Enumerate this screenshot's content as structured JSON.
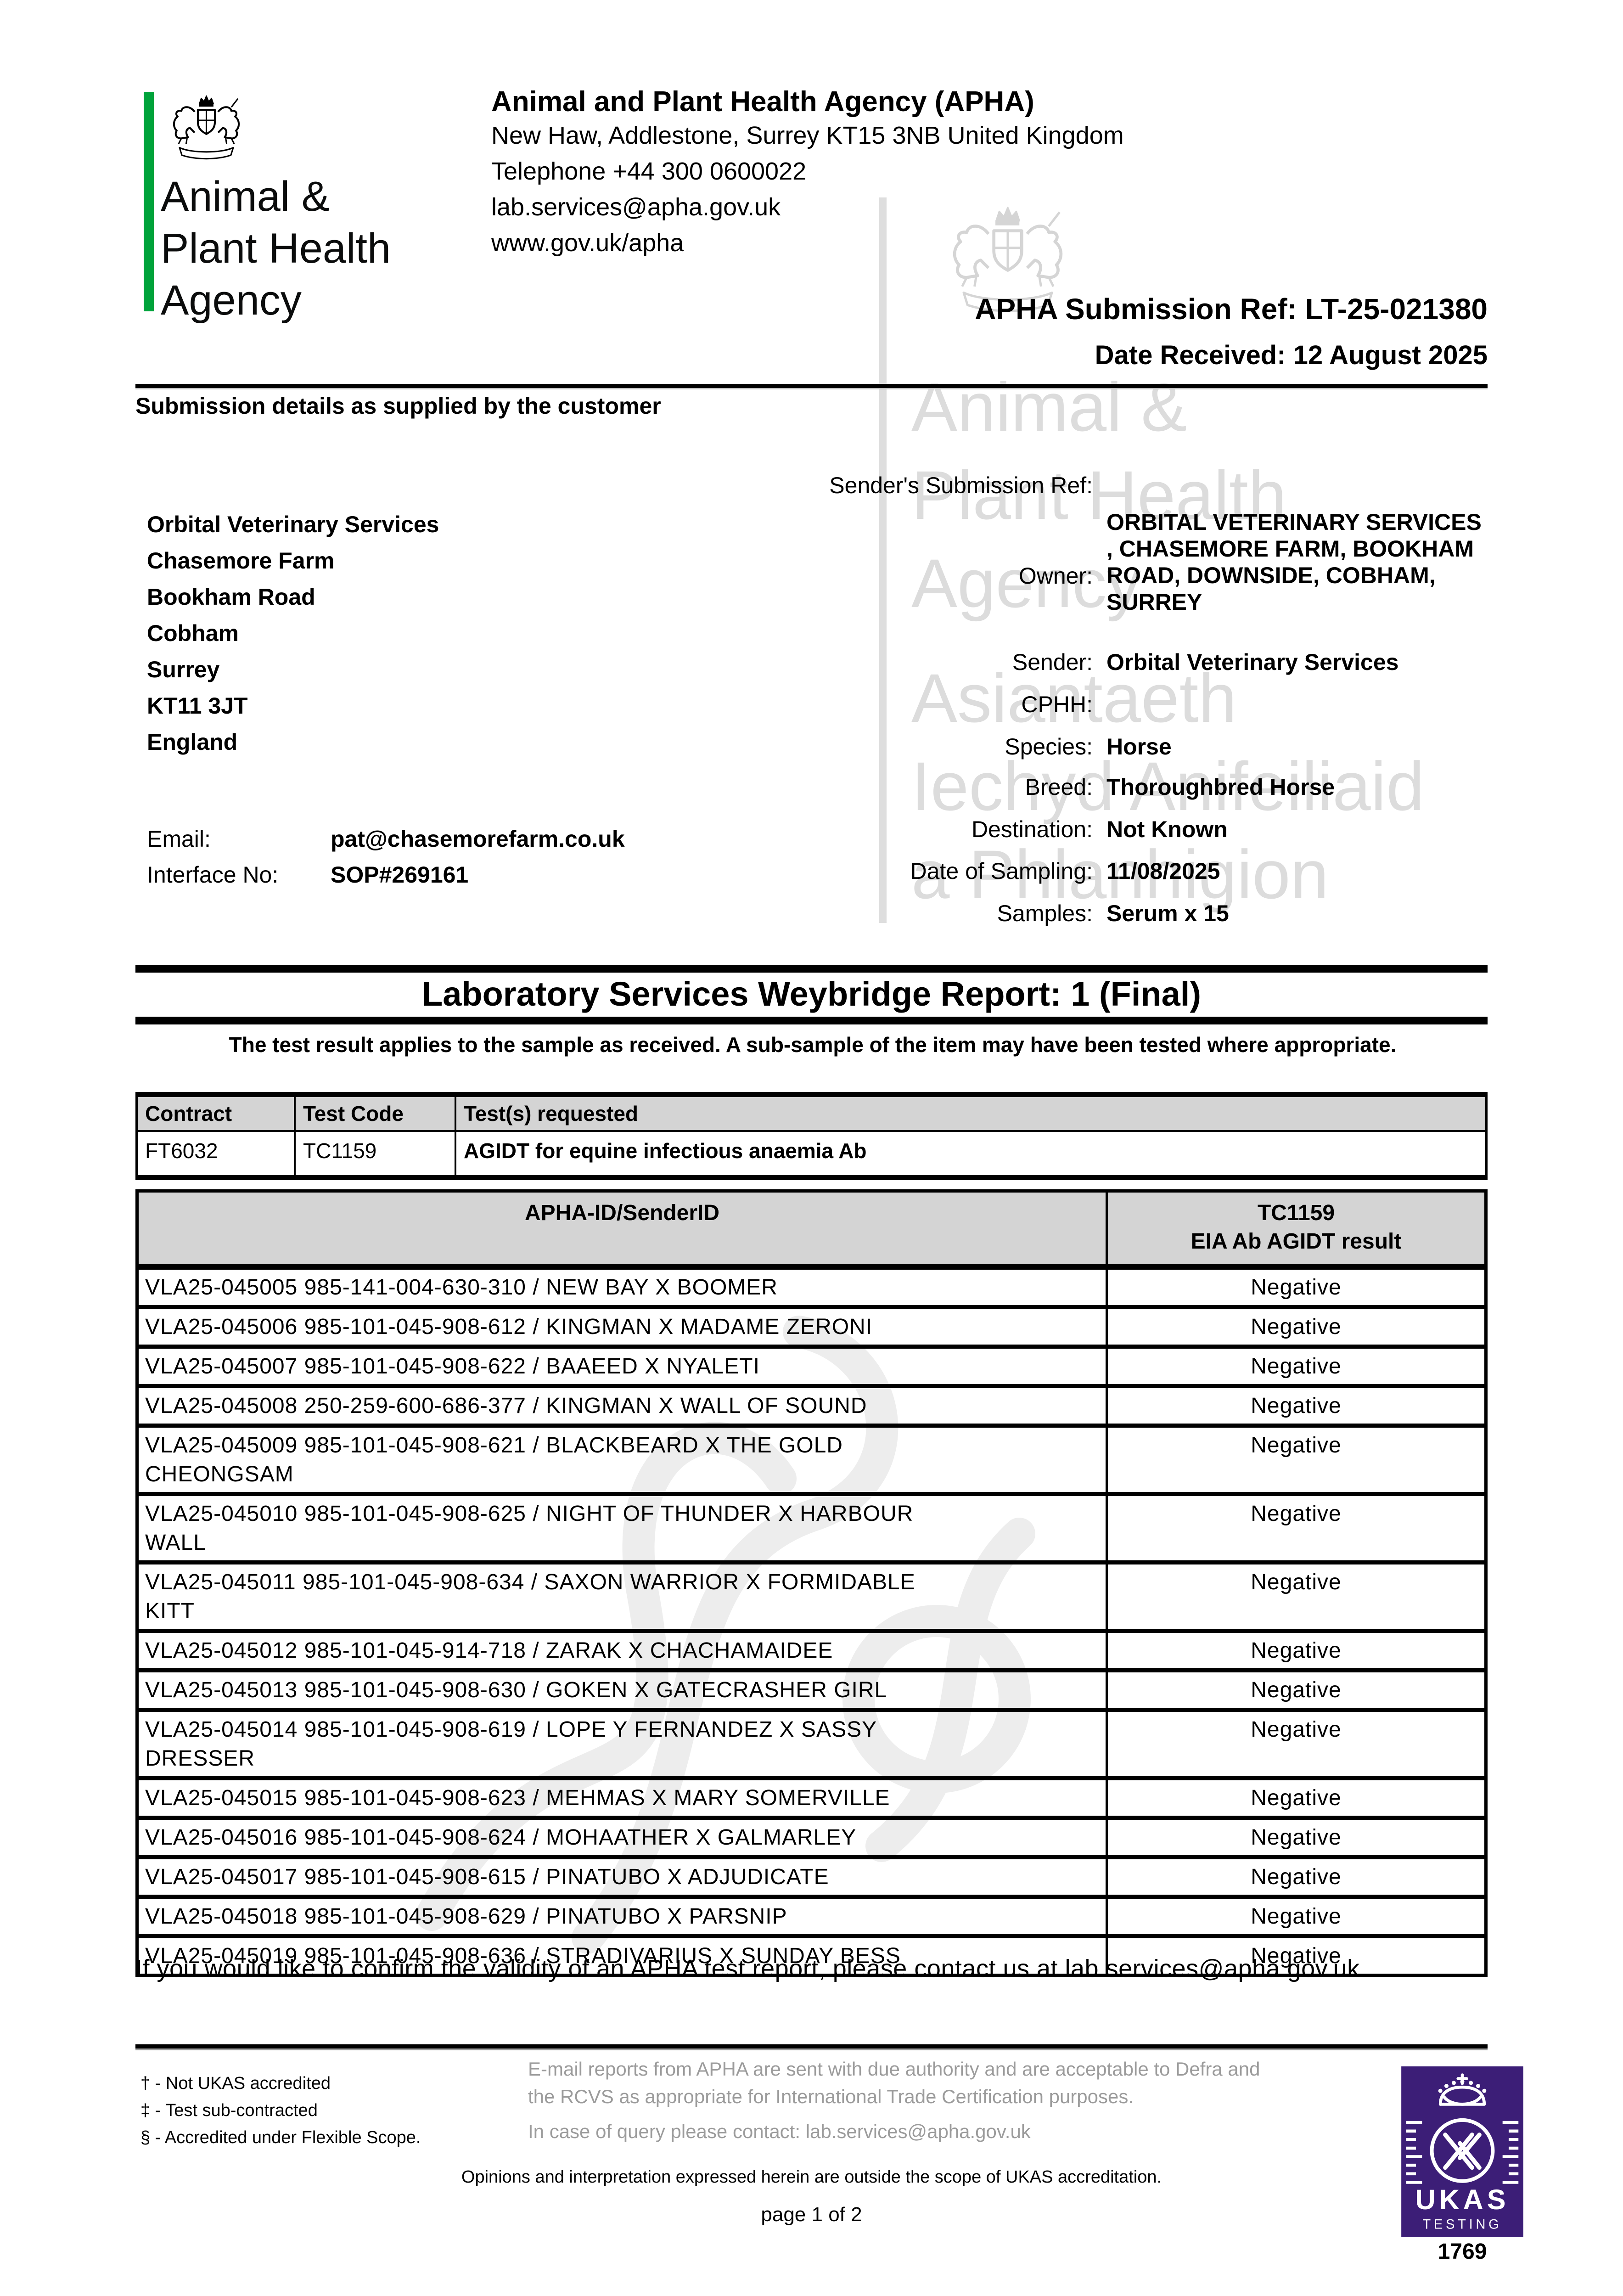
{
  "colors": {
    "green": "#00a33b",
    "ukas_purple": "#3c1e77",
    "table_header_bg": "#d4d4d4",
    "footer_gray": "#9b9b9b",
    "watermark_gray": "#dcdcdc"
  },
  "logo": {
    "line1": "Animal &",
    "line2": "Plant Health",
    "line3": "Agency"
  },
  "header": {
    "org_name": "Animal and Plant Health Agency (APHA)",
    "address_lines": [
      "New Haw, Addlestone, Surrey KT15 3NB United Kingdom",
      "Telephone +44 300 0600022",
      "lab.services@apha.gov.uk",
      "www.gov.uk/apha"
    ],
    "submission_ref": "APHA Submission Ref: LT-25-021380",
    "date_received": "Date Received: 12 August 2025"
  },
  "submission": {
    "section_title": "Submission details as supplied by the customer",
    "senders_ref_label": "Sender's Submission Ref:",
    "customer_address": [
      "Orbital Veterinary Services",
      "Chasemore Farm",
      "Bookham Road",
      "Cobham",
      "Surrey",
      "KT11 3JT",
      "England"
    ],
    "fields": [
      {
        "label": "Owner:",
        "value": "ORBITAL VETERINARY SERVICES\n, CHASEMORE FARM, BOOKHAM\nROAD, DOWNSIDE, COBHAM,\nSURREY"
      },
      {
        "label": "Sender:",
        "value": "Orbital Veterinary Services"
      },
      {
        "label": "CPHH:",
        "value": ""
      },
      {
        "label": "Species:",
        "value": "Horse"
      },
      {
        "label": "Breed:",
        "value": "Thoroughbred Horse"
      },
      {
        "label": "Destination:",
        "value": "Not Known"
      },
      {
        "label": "Date of Sampling:",
        "value": "11/08/2025"
      },
      {
        "label": "Samples:",
        "value": "Serum x 15"
      }
    ],
    "email_label": "Email:",
    "email_value": "pat@chasemorefarm.co.uk",
    "interface_label": "Interface No:",
    "interface_value": "SOP#269161"
  },
  "report": {
    "title": "Laboratory Services Weybridge Report: 1 (Final)",
    "disclaimer": "The test result applies to the sample as received. A sub-sample of the item may have been tested where appropriate.",
    "contract_table": {
      "headers": [
        "Contract",
        "Test Code",
        "Test(s) requested"
      ],
      "row": {
        "contract": "FT6032",
        "test_code": "TC1159",
        "tests_requested": "AGIDT for equine infectious anaemia Ab"
      }
    },
    "results_table": {
      "col1_header": "APHA-ID/SenderID",
      "col2_header_line1": "TC1159",
      "col2_header_line2": "EIA Ab AGIDT result",
      "rows": [
        {
          "id": "VLA25-045005 985-141-004-630-310 / NEW BAY X BOOMER",
          "result": "Negative"
        },
        {
          "id": "VLA25-045006 985-101-045-908-612 / KINGMAN X MADAME ZERONI",
          "result": "Negative"
        },
        {
          "id": "VLA25-045007 985-101-045-908-622 / BAAEED X NYALETI",
          "result": "Negative"
        },
        {
          "id": "VLA25-045008 250-259-600-686-377 / KINGMAN X WALL OF SOUND",
          "result": "Negative"
        },
        {
          "id": "VLA25-045009 985-101-045-908-621 / BLACKBEARD X THE GOLD\nCHEONGSAM",
          "result": "Negative"
        },
        {
          "id": "VLA25-045010 985-101-045-908-625 / NIGHT OF THUNDER X HARBOUR\nWALL",
          "result": "Negative"
        },
        {
          "id": "VLA25-045011 985-101-045-908-634 / SAXON WARRIOR X FORMIDABLE\nKITT",
          "result": "Negative"
        },
        {
          "id": "VLA25-045012 985-101-045-914-718 / ZARAK X CHACHAMAIDEE",
          "result": "Negative"
        },
        {
          "id": "VLA25-045013 985-101-045-908-630 / GOKEN X GATECRASHER GIRL",
          "result": "Negative"
        },
        {
          "id": "VLA25-045014 985-101-045-908-619 / LOPE Y FERNANDEZ X SASSY\nDRESSER",
          "result": "Negative"
        },
        {
          "id": "VLA25-045015 985-101-045-908-623 / MEHMAS X MARY SOMERVILLE",
          "result": "Negative"
        },
        {
          "id": "VLA25-045016 985-101-045-908-624 / MOHAATHER X GALMARLEY",
          "result": "Negative"
        },
        {
          "id": "VLA25-045017 985-101-045-908-615 / PINATUBO X ADJUDICATE",
          "result": "Negative"
        },
        {
          "id": "VLA25-045018 985-101-045-908-629 / PINATUBO X PARSNIP",
          "result": "Negative"
        },
        {
          "id": "VLA25-045019 985-101-045-908-636 / STRADIVARIUS X SUNDAY BESS",
          "result": "Negative"
        }
      ]
    },
    "validity_note": "If you would like to confirm the validity of an APHA test report, please contact us at lab.services@apha.gov.uk"
  },
  "footer": {
    "footnotes": [
      "† - Not UKAS accredited",
      "‡ - Test sub-contracted",
      "§ - Accredited under Flexible Scope."
    ],
    "email_note": "E-mail reports from APHA are sent with due authority and are acceptable to Defra and the RCVS as appropriate for International Trade Certification purposes.",
    "query_note": "In case of query please contact: lab.services@apha.gov.uk",
    "ukas_note": "Opinions and interpretation expressed herein are outside the scope of UKAS accreditation.",
    "page_label": "page 1 of 2",
    "ukas": {
      "name": "UKAS",
      "type": "TESTING",
      "number": "1769"
    }
  },
  "watermark": {
    "lines": [
      "Animal &",
      "Plant Health",
      "Agency",
      "Asiantaeth",
      "Iechyd Anifeiliaid",
      "a Phlanhigion"
    ]
  }
}
